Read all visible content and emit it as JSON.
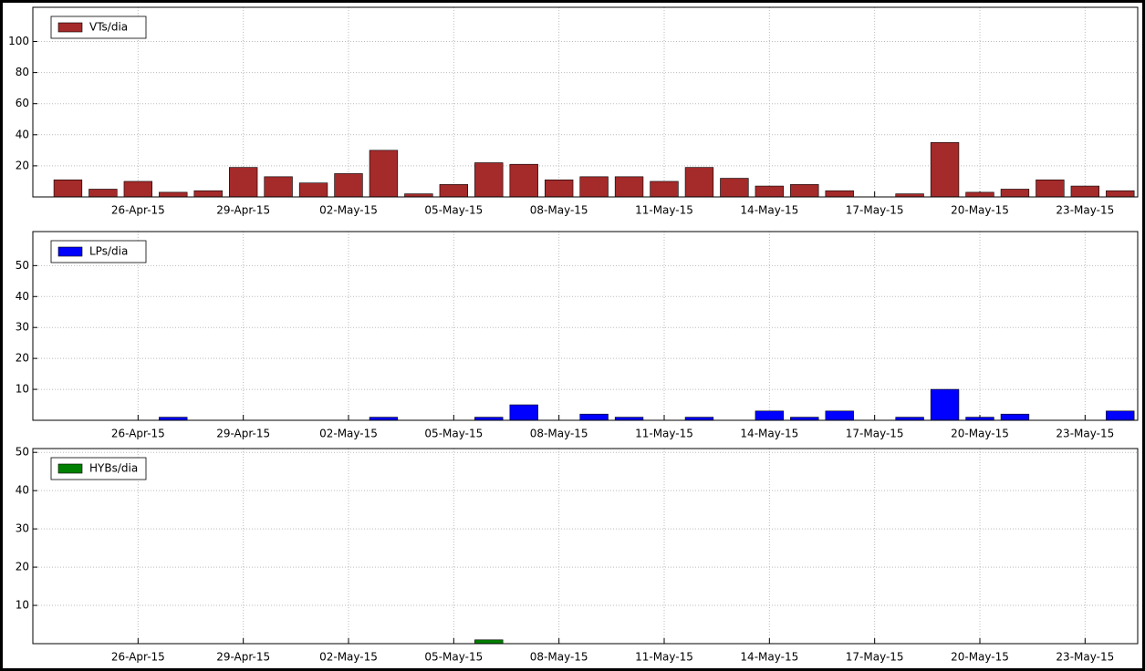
{
  "chart_data": [
    {
      "type": "bar",
      "legend": "upper left",
      "grid": true,
      "x": [
        "2015-04-24",
        "2015-04-25",
        "2015-04-26",
        "2015-04-27",
        "2015-04-28",
        "2015-04-29",
        "2015-04-30",
        "2015-05-01",
        "2015-05-02",
        "2015-05-03",
        "2015-05-04",
        "2015-05-05",
        "2015-05-06",
        "2015-05-07",
        "2015-05-08",
        "2015-05-09",
        "2015-05-10",
        "2015-05-11",
        "2015-05-12",
        "2015-05-13",
        "2015-05-14",
        "2015-05-15",
        "2015-05-16",
        "2015-05-17",
        "2015-05-18",
        "2015-05-19",
        "2015-05-20",
        "2015-05-21",
        "2015-05-22",
        "2015-05-23",
        "2015-05-24"
      ],
      "series": [
        {
          "name": "VTs/dia",
          "color": "#a52a2a",
          "values": [
            11,
            5,
            10,
            3,
            4,
            19,
            13,
            9,
            15,
            30,
            2,
            8,
            22,
            21,
            11,
            13,
            13,
            10,
            19,
            12,
            7,
            8,
            4,
            0,
            2,
            35,
            3,
            5,
            11,
            7,
            4
          ]
        }
      ],
      "xlim": [
        "2015-04-23",
        "2015-05-24T12:00:00Z"
      ],
      "xticks": [
        {
          "value": "2015-04-26",
          "label": "26-Apr-15"
        },
        {
          "value": "2015-04-29",
          "label": "29-Apr-15"
        },
        {
          "value": "2015-05-02",
          "label": "02-May-15"
        },
        {
          "value": "2015-05-05",
          "label": "05-May-15"
        },
        {
          "value": "2015-05-08",
          "label": "08-May-15"
        },
        {
          "value": "2015-05-11",
          "label": "11-May-15"
        },
        {
          "value": "2015-05-14",
          "label": "14-May-15"
        },
        {
          "value": "2015-05-17",
          "label": "17-May-15"
        },
        {
          "value": "2015-05-20",
          "label": "20-May-15"
        },
        {
          "value": "2015-05-23",
          "label": "23-May-15"
        }
      ],
      "ylim": [
        0,
        122
      ],
      "yticks": [
        20,
        40,
        60,
        80,
        100
      ]
    },
    {
      "type": "bar",
      "legend": "upper left",
      "grid": true,
      "x": [
        "2015-04-24",
        "2015-04-25",
        "2015-04-26",
        "2015-04-27",
        "2015-04-28",
        "2015-04-29",
        "2015-04-30",
        "2015-05-01",
        "2015-05-02",
        "2015-05-03",
        "2015-05-04",
        "2015-05-05",
        "2015-05-06",
        "2015-05-07",
        "2015-05-08",
        "2015-05-09",
        "2015-05-10",
        "2015-05-11",
        "2015-05-12",
        "2015-05-13",
        "2015-05-14",
        "2015-05-15",
        "2015-05-16",
        "2015-05-17",
        "2015-05-18",
        "2015-05-19",
        "2015-05-20",
        "2015-05-21",
        "2015-05-22",
        "2015-05-23",
        "2015-05-24"
      ],
      "series": [
        {
          "name": "LPs/dia",
          "color": "#0000ff",
          "values": [
            0,
            0,
            0,
            1,
            0,
            0,
            0,
            0,
            0,
            1,
            0,
            0,
            1,
            5,
            0,
            2,
            1,
            0,
            1,
            0,
            3,
            1,
            3,
            0,
            1,
            10,
            1,
            2,
            0,
            0,
            3
          ]
        }
      ],
      "xlim": [
        "2015-04-23",
        "2015-05-24T12:00:00Z"
      ],
      "xticks": [
        {
          "value": "2015-04-26",
          "label": "26-Apr-15"
        },
        {
          "value": "2015-04-29",
          "label": "29-Apr-15"
        },
        {
          "value": "2015-05-02",
          "label": "02-May-15"
        },
        {
          "value": "2015-05-05",
          "label": "05-May-15"
        },
        {
          "value": "2015-05-08",
          "label": "08-May-15"
        },
        {
          "value": "2015-05-11",
          "label": "11-May-15"
        },
        {
          "value": "2015-05-14",
          "label": "14-May-15"
        },
        {
          "value": "2015-05-17",
          "label": "17-May-15"
        },
        {
          "value": "2015-05-20",
          "label": "20-May-15"
        },
        {
          "value": "2015-05-23",
          "label": "23-May-15"
        }
      ],
      "ylim": [
        0,
        61
      ],
      "yticks": [
        10,
        20,
        30,
        40,
        50
      ]
    },
    {
      "type": "bar",
      "legend": "upper left",
      "grid": true,
      "x": [
        "2015-04-24",
        "2015-04-25",
        "2015-04-26",
        "2015-04-27",
        "2015-04-28",
        "2015-04-29",
        "2015-04-30",
        "2015-05-01",
        "2015-05-02",
        "2015-05-03",
        "2015-05-04",
        "2015-05-05",
        "2015-05-06",
        "2015-05-07",
        "2015-05-08",
        "2015-05-09",
        "2015-05-10",
        "2015-05-11",
        "2015-05-12",
        "2015-05-13",
        "2015-05-14",
        "2015-05-15",
        "2015-05-16",
        "2015-05-17",
        "2015-05-18",
        "2015-05-19",
        "2015-05-20",
        "2015-05-21",
        "2015-05-22",
        "2015-05-23",
        "2015-05-24"
      ],
      "series": [
        {
          "name": "HYBs/dia",
          "color": "#008000",
          "values": [
            0,
            0,
            0,
            0,
            0,
            0,
            0,
            0,
            0,
            0,
            0,
            0,
            1,
            0,
            0,
            0,
            0,
            0,
            0,
            0,
            0,
            0,
            0,
            0,
            0,
            0,
            0,
            0,
            0,
            0,
            0
          ]
        }
      ],
      "xlim": [
        "2015-04-23",
        "2015-05-24T12:00:00Z"
      ],
      "xticks": [
        {
          "value": "2015-04-26",
          "label": "26-Apr-15"
        },
        {
          "value": "2015-04-29",
          "label": "29-Apr-15"
        },
        {
          "value": "2015-05-02",
          "label": "02-May-15"
        },
        {
          "value": "2015-05-05",
          "label": "05-May-15"
        },
        {
          "value": "2015-05-08",
          "label": "08-May-15"
        },
        {
          "value": "2015-05-11",
          "label": "11-May-15"
        },
        {
          "value": "2015-05-14",
          "label": "14-May-15"
        },
        {
          "value": "2015-05-17",
          "label": "17-May-15"
        },
        {
          "value": "2015-05-20",
          "label": "20-May-15"
        },
        {
          "value": "2015-05-23",
          "label": "23-May-15"
        }
      ],
      "ylim": [
        0,
        51
      ],
      "yticks": [
        10,
        20,
        30,
        40,
        50
      ]
    }
  ]
}
